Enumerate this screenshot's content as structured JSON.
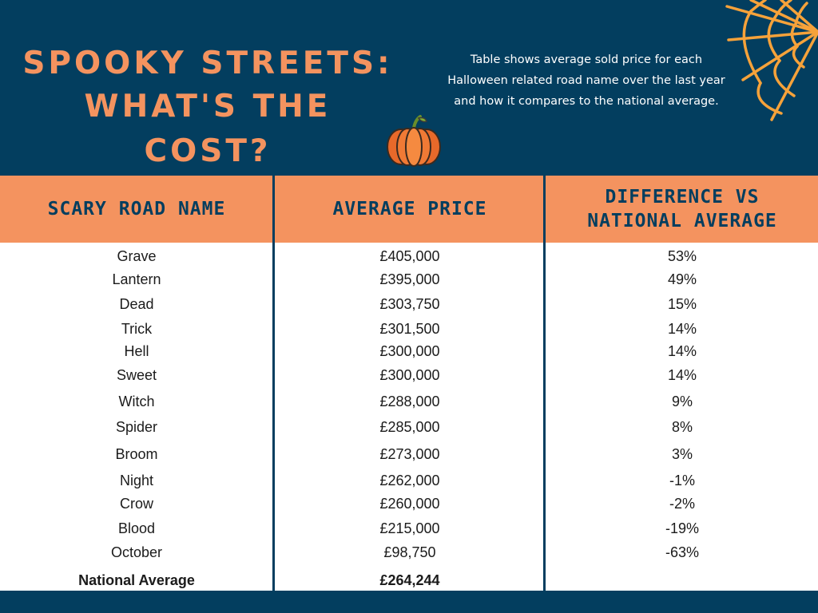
{
  "header": {
    "title_line1": "SPOOKY STREETS:",
    "title_line2": "WHAT'S THE COST?",
    "subtitle_lines": [
      "Table shows average sold price for each",
      "Halloween related road name over the last year",
      "and how it compares to the national average."
    ]
  },
  "colors": {
    "navy": "#033e5f",
    "orange": "#f4935f",
    "white": "#ffffff"
  },
  "icons": [
    "spider-web-icon",
    "pumpkin-icon"
  ],
  "chart_data": {
    "type": "table",
    "columns": [
      "SCARY ROAD NAME",
      "AVERAGE PRICE",
      "DIFFERENCE VS NATIONAL AVERAGE"
    ],
    "rows": [
      [
        "Grave",
        "£405,000",
        "53%"
      ],
      [
        "Lantern",
        "£395,000",
        "49%"
      ],
      [
        "Dead",
        "£303,750",
        "15%"
      ],
      [
        "Trick",
        "£301,500",
        "14%"
      ],
      [
        "Hell",
        "£300,000",
        "14%"
      ],
      [
        "Sweet",
        "£300,000",
        "14%"
      ],
      [
        "Witch",
        "£288,000",
        "9%"
      ],
      [
        "Spider",
        "£285,000",
        "8%"
      ],
      [
        "Broom",
        "£273,000",
        "3%"
      ],
      [
        "Night",
        "£262,000",
        "-1%"
      ],
      [
        "Crow",
        "£260,000",
        "-2%"
      ],
      [
        "Blood",
        "£215,000",
        "-19%"
      ],
      [
        "October",
        "£98,750",
        "-63%"
      ]
    ],
    "total_row": [
      "National Average",
      "£264,244",
      ""
    ]
  }
}
